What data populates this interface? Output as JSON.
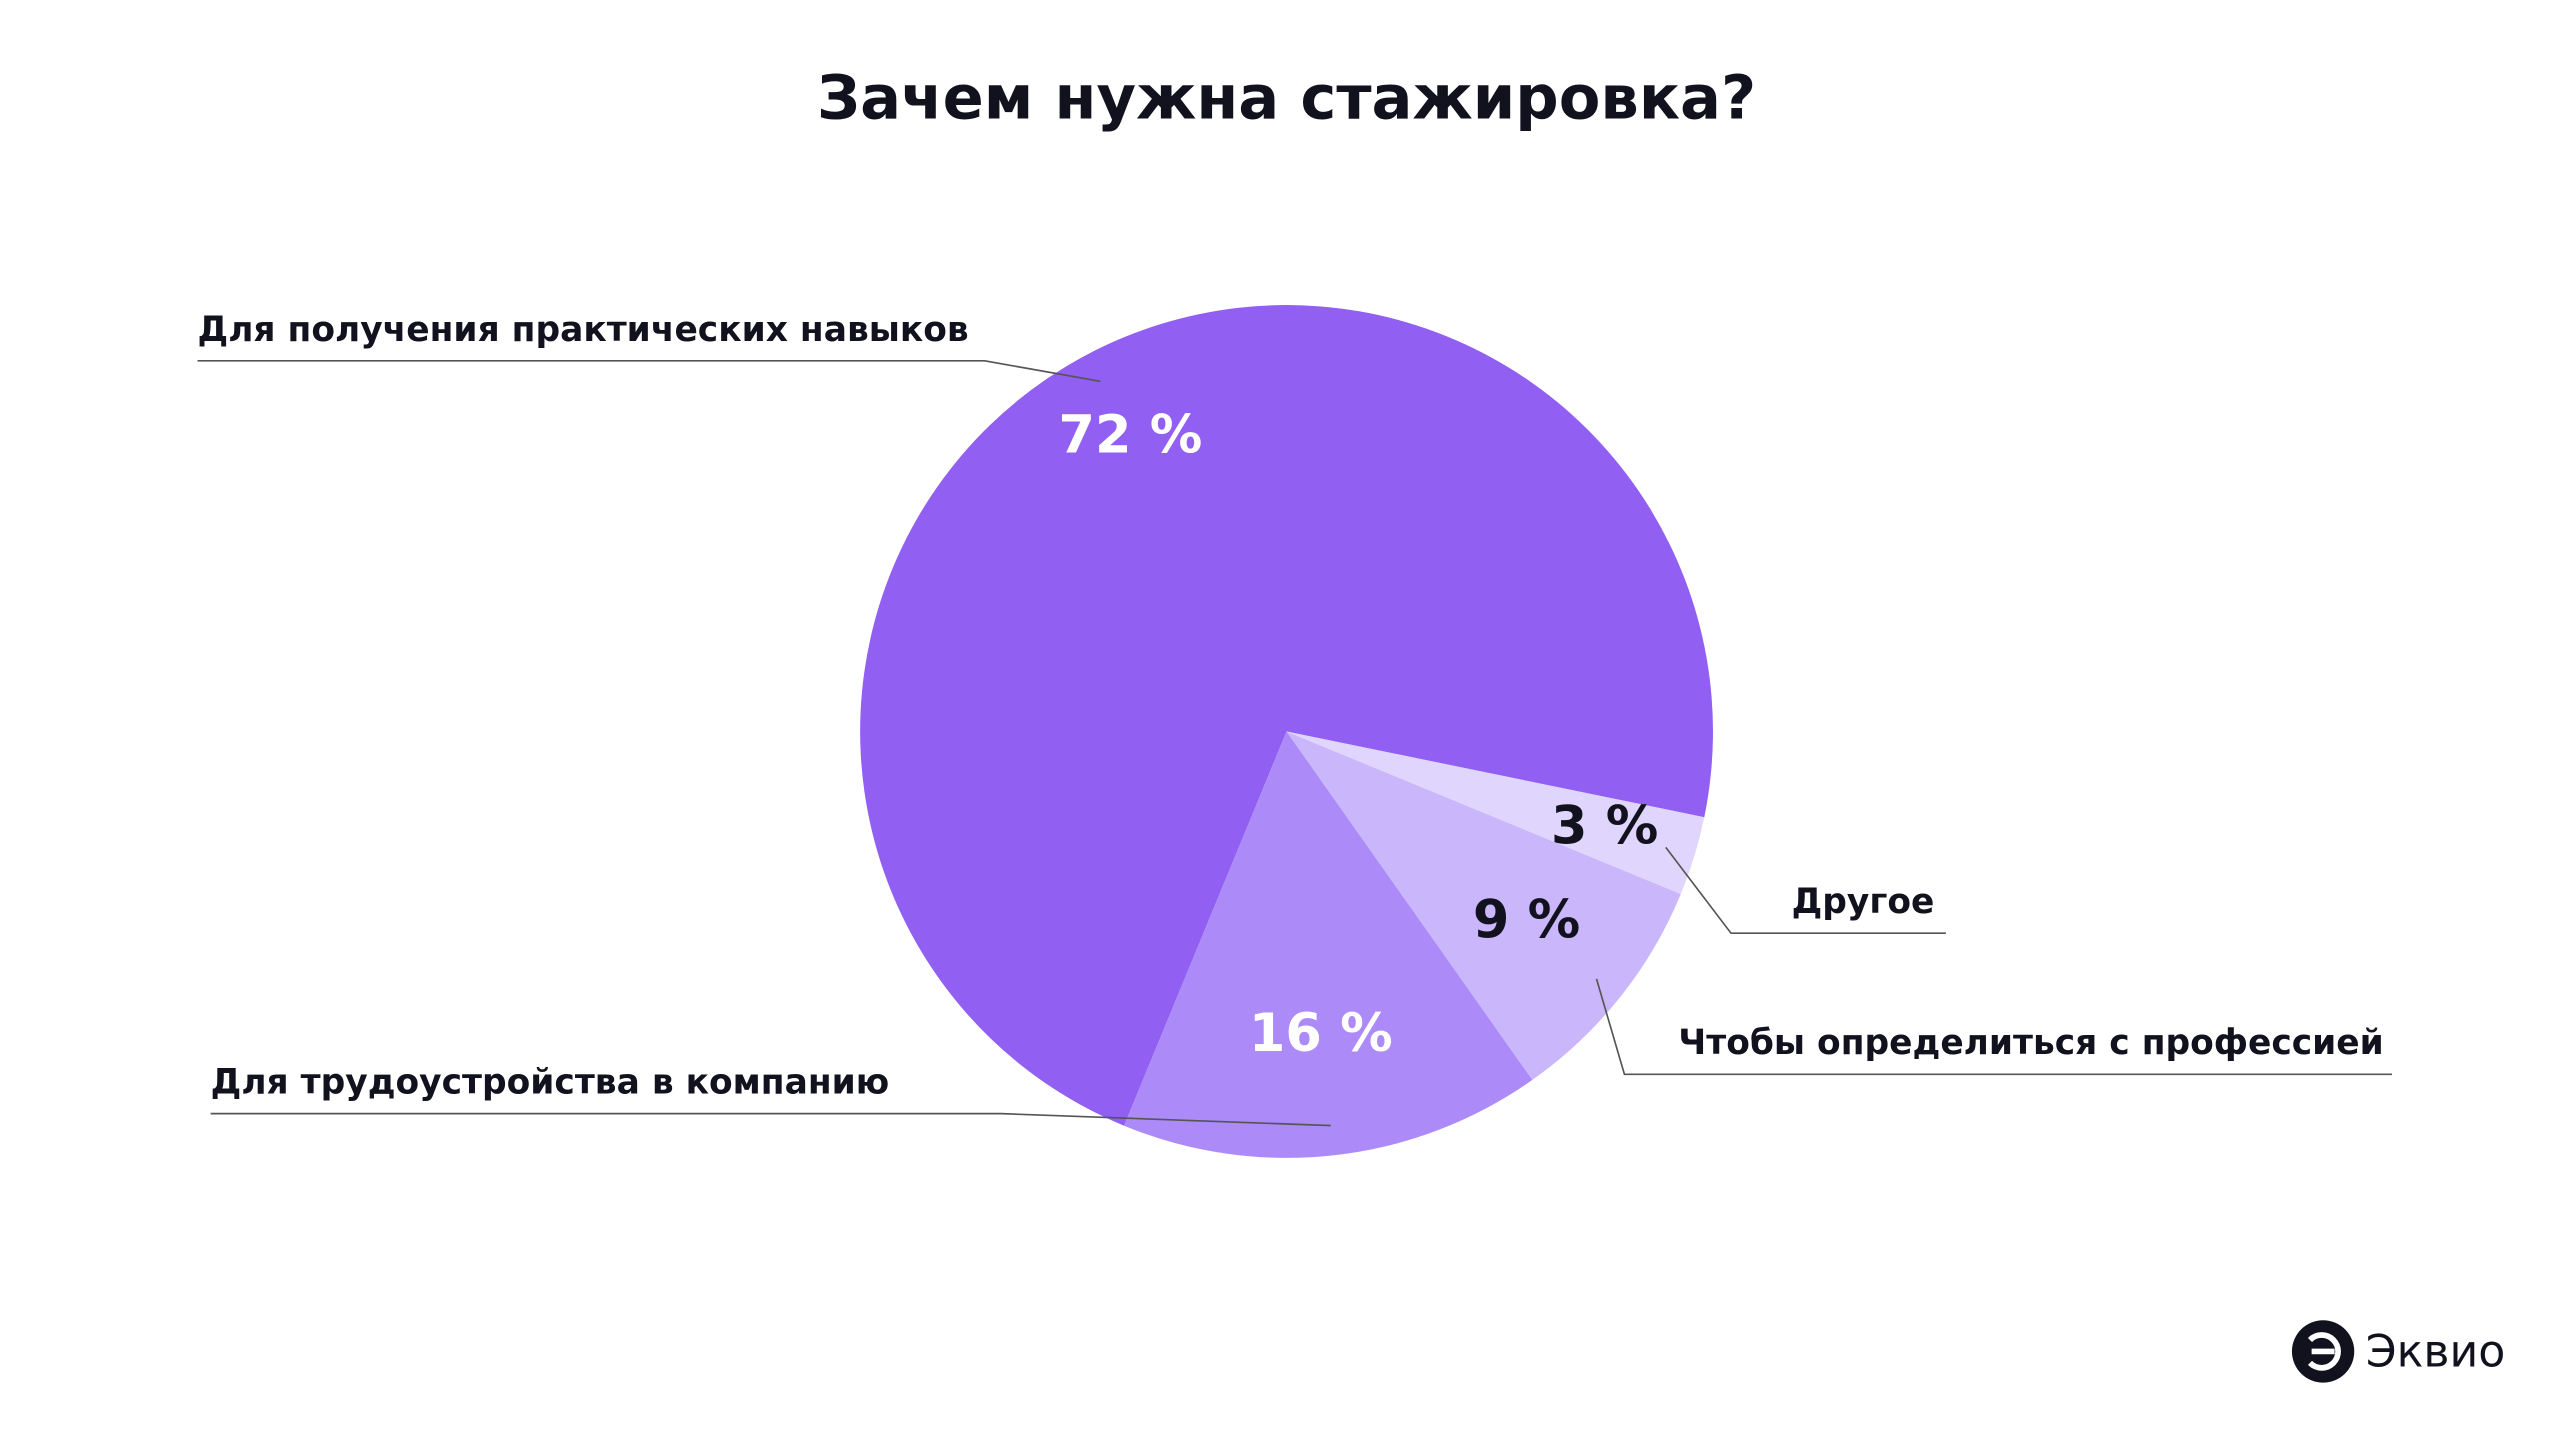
{
  "chart_data": {
    "type": "pie",
    "title": "Зачем нужна стажировка?",
    "categories": [
      "Для получения практических навыков",
      "Для трудоустройства в компанию",
      "Чтобы определиться с профессией",
      "Другое"
    ],
    "values": [
      72,
      16,
      9,
      3
    ],
    "value_labels": [
      "72 %",
      "16 %",
      "9 %",
      "3 %"
    ],
    "colors": [
      "#925ff3",
      "#ac8bf8",
      "#c9b6fb",
      "#e0d6fd"
    ]
  },
  "brand": "Эквио"
}
